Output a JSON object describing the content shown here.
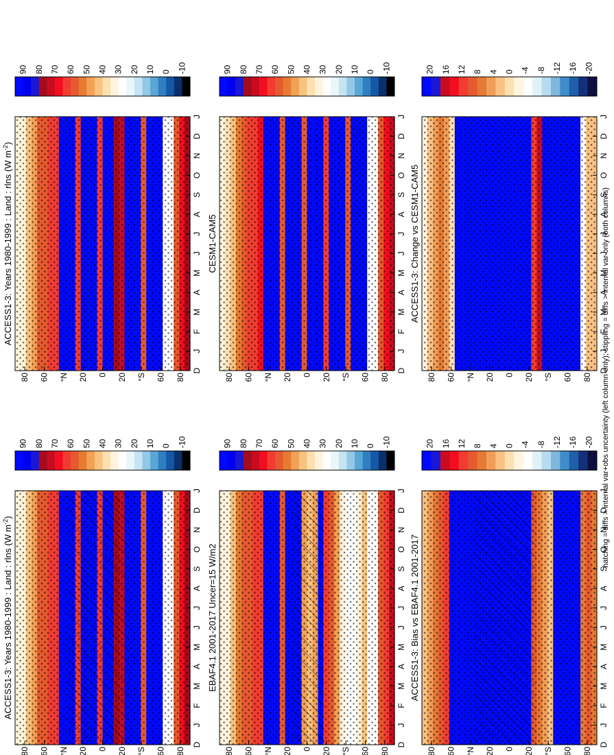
{
  "footnote": "hatching = diffs > internal var+obs uncertainty (left column only); stippling = diffs > internal var only (both columns)",
  "palettes": {
    "abs": [
      "#000000",
      "#08306b",
      "#1558a8",
      "#2f7fc1",
      "#5aa6d6",
      "#93c8e6",
      "#c5e4f2",
      "#e9f6fa",
      "#ffffff",
      "#fff3dc",
      "#fde0b0",
      "#f8c27f",
      "#f2a155",
      "#e67c32",
      "#e55a2f",
      "#f23c31",
      "#f20e1e",
      "#c80b1f",
      "#a40b1f",
      "#1a17d6",
      "#0000f0",
      "#0008ff"
    ],
    "diff": [
      "#0f0f3f",
      "#14307a",
      "#1f5fa8",
      "#3f8ccb",
      "#7fb7de",
      "#b8dcef",
      "#e0f1f8",
      "#ffffff",
      "#fff4de",
      "#fde0b4",
      "#f9c283",
      "#f19d57",
      "#e57a34",
      "#e55a2f",
      "#f23c31",
      "#f20e1e",
      "#c80b1f",
      "#1a17d6",
      "#0008ff"
    ]
  },
  "chart_data": [
    {
      "type": "heatmap",
      "title": "ACCESS1-3: Years 1980-1999 : Land : rlns (W m",
      "title_sup": "-2",
      "title_close": ")",
      "xlabel": "",
      "ylabel": "",
      "x_ticks": [
        "D",
        "J",
        "F",
        "M",
        "A",
        "M",
        "J",
        "J",
        "A",
        "S",
        "O",
        "N",
        "D",
        "J"
      ],
      "y_ticks": [
        "80",
        "60",
        "°N",
        "20",
        "0",
        "20",
        "°S",
        "60",
        "80"
      ],
      "colorbar": {
        "ticks": [
          "90",
          "80",
          "70",
          "60",
          "50",
          "40",
          "30",
          "20",
          "10",
          "0",
          "-10"
        ],
        "range": [
          -15,
          95
        ]
      },
      "palette": "abs",
      "band_values": [
        30,
        34,
        40,
        48,
        55,
        60,
        62,
        63,
        92,
        92,
        92,
        62,
        92,
        92,
        92,
        62,
        92,
        92,
        75,
        72,
        92,
        92,
        92,
        58,
        92,
        92,
        92,
        100,
        100,
        60,
        68,
        75
      ],
      "hatching": "left",
      "stippling": true
    },
    {
      "type": "heatmap",
      "title": "ACCESS1-3: Years 1980-1999 : Land : rlns (W m",
      "title_sup": "-2",
      "title_close": ")",
      "xlabel": "",
      "ylabel": "",
      "x_ticks": [
        "D",
        "J",
        "F",
        "M",
        "A",
        "M",
        "J",
        "J",
        "A",
        "S",
        "O",
        "N",
        "D",
        "J"
      ],
      "y_ticks": [
        "80",
        "60",
        "°N",
        "20",
        "0",
        "20",
        "°S",
        "60",
        "80"
      ],
      "colorbar": {
        "ticks": [
          "90",
          "80",
          "70",
          "60",
          "50",
          "40",
          "30",
          "20",
          "10",
          "0",
          "-10"
        ],
        "range": [
          -15,
          95
        ]
      },
      "palette": "abs",
      "band_values": [
        30,
        34,
        40,
        48,
        55,
        60,
        62,
        63,
        92,
        92,
        92,
        62,
        92,
        92,
        92,
        62,
        92,
        92,
        75,
        72,
        92,
        92,
        92,
        58,
        92,
        92,
        92,
        100,
        100,
        60,
        68,
        75
      ],
      "hatching": "none",
      "stippling": true
    },
    {
      "type": "heatmap",
      "title": "EBAF4.1 2001-2017 Uncer=15 W/m2",
      "xlabel": "",
      "ylabel": "",
      "x_ticks": [
        "D",
        "J",
        "F",
        "M",
        "A",
        "M",
        "J",
        "J",
        "A",
        "S",
        "O",
        "N",
        "D",
        "J"
      ],
      "y_ticks": [
        "80",
        "60",
        "°N",
        "20",
        "0",
        "20",
        "°S",
        "60",
        "80"
      ],
      "colorbar": {
        "ticks": [
          "90",
          "80",
          "70",
          "60",
          "50",
          "40",
          "30",
          "20",
          "10",
          "0",
          "-10"
        ],
        "range": [
          -15,
          95
        ]
      },
      "palette": "abs",
      "band_values": [
        30,
        34,
        42,
        50,
        56,
        60,
        62,
        63,
        92,
        92,
        92,
        58,
        92,
        92,
        92,
        45,
        42,
        48,
        92,
        62,
        58,
        45,
        30,
        25,
        28,
        32,
        40,
        100,
        100,
        55,
        62,
        70
      ],
      "hatching": "center",
      "stippling": true
    },
    {
      "type": "heatmap",
      "title": "CESM1-CAM5",
      "xlabel": "",
      "ylabel": "",
      "x_ticks": [
        "D",
        "J",
        "F",
        "M",
        "A",
        "M",
        "J",
        "J",
        "A",
        "S",
        "O",
        "N",
        "D",
        "J"
      ],
      "y_ticks": [
        "80",
        "60",
        "°N",
        "20",
        "0",
        "20",
        "°S",
        "60",
        "80"
      ],
      "colorbar": {
        "ticks": [
          "90",
          "80",
          "70",
          "60",
          "50",
          "40",
          "30",
          "20",
          "10",
          "0",
          "-10"
        ],
        "range": [
          -15,
          95
        ]
      },
      "palette": "abs",
      "band_values": [
        30,
        36,
        44,
        52,
        58,
        62,
        64,
        66,
        92,
        92,
        92,
        60,
        92,
        92,
        92,
        58,
        92,
        92,
        92,
        62,
        92,
        92,
        92,
        55,
        92,
        92,
        92,
        100,
        100,
        58,
        65,
        72
      ],
      "hatching": "none",
      "stippling": true
    },
    {
      "type": "heatmap",
      "title": "ACCESS1-3: Bias vs EBAF4.1 2001-2017",
      "xlabel": "",
      "ylabel": "",
      "x_ticks": [
        "D",
        "J",
        "F",
        "M",
        "A",
        "M",
        "J",
        "J",
        "A",
        "S",
        "O",
        "N",
        "D",
        "J"
      ],
      "y_ticks": [
        "80",
        "60",
        "°N",
        "20",
        "0",
        "20",
        "°S",
        "60",
        "80"
      ],
      "colorbar": {
        "ticks": [
          "20",
          "16",
          "12",
          "8",
          "4",
          "0",
          "-4",
          "-8",
          "-12",
          "-16",
          "-20"
        ],
        "range": [
          -22,
          22
        ]
      },
      "palette": "diff",
      "band_values": [
        2,
        4,
        6,
        9,
        12,
        22,
        22,
        22,
        22,
        22,
        22,
        22,
        22,
        22,
        22,
        22,
        22,
        22,
        22,
        22,
        10,
        6,
        4,
        3,
        22,
        22,
        22,
        30,
        30,
        8,
        10,
        6
      ],
      "hatching": "left",
      "stippling": true
    },
    {
      "type": "heatmap",
      "title": "ACCESS1-3: Change vs CESM1-CAM5",
      "xlabel": "",
      "ylabel": "",
      "x_ticks": [
        "D",
        "J",
        "F",
        "M",
        "A",
        "M",
        "J",
        "J",
        "A",
        "S",
        "O",
        "N",
        "D",
        "J"
      ],
      "y_ticks": [
        "80",
        "60",
        "°N",
        "20",
        "0",
        "20",
        "°S",
        "60",
        "80"
      ],
      "colorbar": {
        "ticks": [
          "20",
          "16",
          "12",
          "8",
          "4",
          "0",
          "-4",
          "-8",
          "-12",
          "-16",
          "-20"
        ],
        "range": [
          -22,
          22
        ]
      },
      "palette": "diff",
      "band_values": [
        -2,
        2,
        4,
        8,
        5,
        0,
        22,
        22,
        22,
        22,
        22,
        22,
        22,
        22,
        22,
        22,
        22,
        22,
        22,
        22,
        12,
        16,
        22,
        22,
        22,
        22,
        22,
        30,
        30,
        -4,
        2,
        3
      ],
      "hatching": "none",
      "stippling": true
    }
  ]
}
